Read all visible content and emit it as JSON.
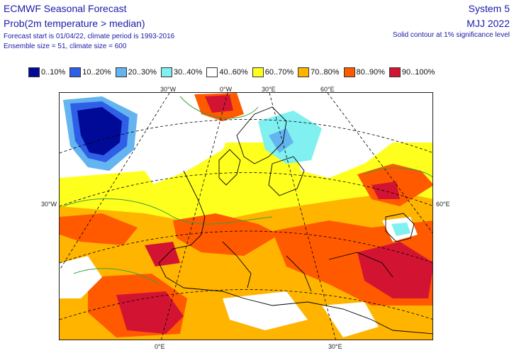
{
  "header": {
    "title": "ECMWF Seasonal Forecast",
    "subtitle": "Prob(2m temperature > median)",
    "info_line1": "Forecast start is 01/04/22, climate period is 1993-2016",
    "info_line2": "Ensemble size = 51, climate size = 600",
    "system": "System 5",
    "period": "MJJ 2022",
    "significance_note": "Solid contour at 1% significance level"
  },
  "legend": [
    {
      "label": "0..10%",
      "color": "#000a96"
    },
    {
      "label": "10..20%",
      "color": "#2e5fe6"
    },
    {
      "label": "20..30%",
      "color": "#64b4f0"
    },
    {
      "label": "30..40%",
      "color": "#80f0f0"
    },
    {
      "label": "40..60%",
      "color": "#ffffff"
    },
    {
      "label": "60..70%",
      "color": "#ffff1e"
    },
    {
      "label": "70..80%",
      "color": "#ffb400"
    },
    {
      "label": "80..90%",
      "color": "#ff5a00"
    },
    {
      "label": "90..100%",
      "color": "#d21432"
    }
  ],
  "coordinates": {
    "top": [
      "30°W",
      "0°W",
      "30°E",
      "60°E"
    ],
    "left": "30°W",
    "right": "60°E",
    "bottom": [
      "0°E",
      "30°E"
    ]
  },
  "colors": {
    "title_text": "#1a1aa8",
    "land_contour": "#000000",
    "significance_contour": "#3c9e3c",
    "graticule": "#000000"
  }
}
